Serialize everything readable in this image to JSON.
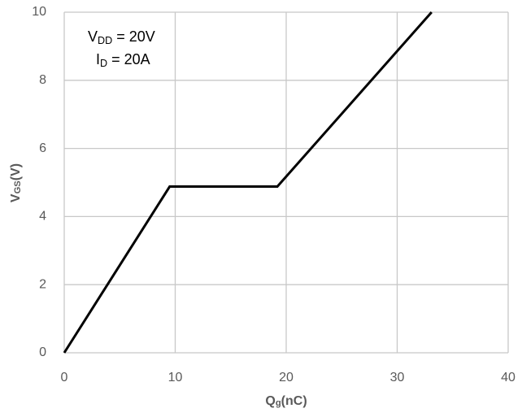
{
  "chart_data": {
    "type": "line",
    "x_label": [
      "Q",
      "g",
      "(nC)"
    ],
    "y_label": [
      "V",
      "GS",
      "(V)"
    ],
    "annotations": [
      [
        "V",
        "DD",
        " = 20V"
      ],
      [
        "I",
        "D",
        " = 20A"
      ]
    ],
    "x": [
      0,
      9.5,
      19.2,
      33.1
    ],
    "series": [
      {
        "color": "#000000",
        "values": [
          0,
          4.88,
          4.88,
          10
        ]
      }
    ],
    "xlim": [
      0,
      40
    ],
    "xticks": [
      0,
      10,
      20,
      30,
      40
    ],
    "ylim": [
      0,
      10
    ],
    "yticks": [
      0,
      2,
      4,
      6,
      8,
      10
    ],
    "grid": true
  }
}
